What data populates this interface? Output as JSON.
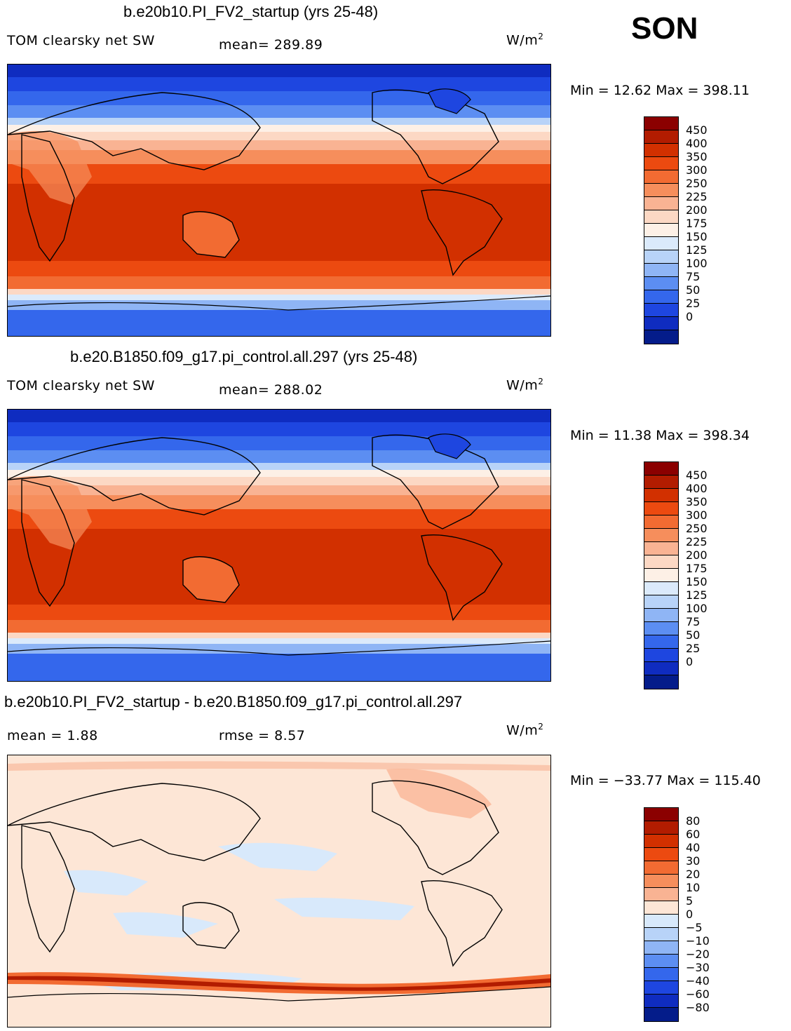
{
  "season": "SON",
  "units_base": "W/m",
  "units_exp": "2",
  "panels": [
    {
      "title": "b.e20b10.PI_FV2_startup (yrs 25-48)",
      "left_label": "TOM clearsky net SW",
      "center_label": "mean=  289.89",
      "min_max": "Min =   12.62  Max =  398.11",
      "palette": "abs"
    },
    {
      "title": "b.e20.B1850.f09_g17.pi_control.all.297 (yrs 25-48)",
      "left_label": "TOM clearsky net SW",
      "center_label": "mean=  288.02",
      "min_max": "Min =   11.38  Max =  398.34",
      "palette": "abs"
    },
    {
      "title": "b.e20b10.PI_FV2_startup - b.e20.B1850.f09_g17.pi_control.all.297",
      "left_label": "mean =     1.88",
      "center_label": "rmse =     8.57",
      "min_max": "Min =  −33.77  Max =  115.40",
      "palette": "diff"
    }
  ],
  "colorbars": {
    "abs": {
      "labels": [
        "450",
        "400",
        "350",
        "300",
        "250",
        "225",
        "200",
        "175",
        "150",
        "125",
        "100",
        "75",
        "50",
        "25",
        "0"
      ],
      "colors": [
        "#8b0000",
        "#b21c00",
        "#d23000",
        "#ec4a10",
        "#f26b32",
        "#f68e5c",
        "#f9b393",
        "#fcd8c4",
        "#fdf0e6",
        "#dbeafb",
        "#b8d3f8",
        "#8fb5f5",
        "#5c8ef2",
        "#3467ec",
        "#1e46e0",
        "#0f2cc0",
        "#041c8a"
      ]
    },
    "diff": {
      "labels": [
        "80",
        "60",
        "40",
        "30",
        "20",
        "10",
        "5",
        "0",
        "−5",
        "−10",
        "−20",
        "−30",
        "−40",
        "−60",
        "−80"
      ],
      "colors": [
        "#8b0000",
        "#b21c00",
        "#d23000",
        "#ec4a10",
        "#f26b32",
        "#f68e5c",
        "#f9b393",
        "#fde6d6",
        "#d8e9fb",
        "#b8d3f8",
        "#8fb5f5",
        "#5c8ef2",
        "#3467ec",
        "#1e46e0",
        "#0f2cc0",
        "#041c8a"
      ]
    }
  }
}
